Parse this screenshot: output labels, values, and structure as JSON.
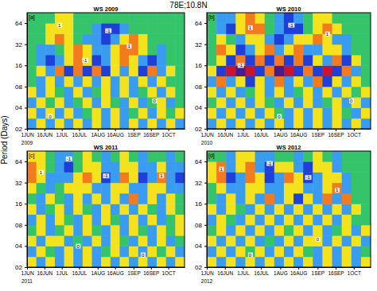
{
  "title": "78E;10.8N",
  "y_label": "Period (Days)",
  "chart_data": [
    {
      "type": "heatmap",
      "title": "WS 2009",
      "panel": "[a]",
      "x_sublabel": "2009",
      "log": "y",
      "grid": false,
      "xlim": [
        0,
        136
      ],
      "ylim": [
        2,
        90
      ],
      "zlim": [
        -3,
        3
      ],
      "xticks": [
        {
          "value": 0,
          "label": "1JUN"
        },
        {
          "value": 15,
          "label": "16JUN"
        },
        {
          "value": 30,
          "label": "1JUL"
        },
        {
          "value": 45,
          "label": "16JUL"
        },
        {
          "value": 61,
          "label": "1AUG"
        },
        {
          "value": 76,
          "label": "16AUG"
        },
        {
          "value": 92,
          "label": "1SEP"
        },
        {
          "value": 107,
          "label": "16SEP"
        },
        {
          "value": 122,
          "label": "1OCT"
        }
      ],
      "yticks": [
        {
          "value": 2,
          "label": "02"
        },
        {
          "value": 4,
          "label": "04"
        },
        {
          "value": 8,
          "label": "08"
        },
        16,
        32,
        64
      ],
      "x": [
        4,
        12,
        20,
        28,
        36,
        44,
        52,
        60,
        68,
        76,
        84,
        92,
        100,
        108,
        116,
        124,
        132
      ],
      "y": [
        2.38,
        3.36,
        4.76,
        6.73,
        9.51,
        13.45,
        19.03,
        26.9,
        38.05,
        53.8,
        76.1
      ],
      "cells": [
        [
          -1,
          1,
          -1,
          1,
          -1,
          1,
          -1,
          1,
          -1,
          1,
          -1,
          1,
          -1,
          1,
          -1,
          1,
          -1
        ],
        [
          1,
          -1,
          1,
          -1,
          1,
          -1,
          0,
          1,
          -1,
          1,
          -1,
          0,
          1,
          -1,
          1,
          0,
          1
        ],
        [
          -1,
          1,
          0,
          1,
          -1,
          0,
          1,
          -1,
          1,
          0,
          -1,
          1,
          -1,
          0,
          1,
          -1,
          0
        ],
        [
          1,
          -1,
          1,
          0,
          -1,
          1,
          -1,
          0,
          1,
          -1,
          1,
          -1,
          0,
          1,
          -1,
          1,
          0
        ],
        [
          0,
          -1,
          1,
          -1,
          1,
          -1,
          1,
          -1,
          1,
          -1,
          1,
          -1,
          1,
          -1,
          1,
          0,
          0
        ],
        [
          0,
          1,
          -1,
          2,
          -2,
          2,
          -2,
          2,
          -2,
          1,
          -1,
          1,
          -2,
          2,
          -1,
          1,
          0
        ],
        [
          0,
          -1,
          -2,
          -1,
          1,
          2,
          1,
          -2,
          -1,
          1,
          2,
          1,
          -1,
          -2,
          -1,
          0,
          0
        ],
        [
          0,
          -1,
          -1,
          0,
          1,
          2,
          1,
          -1,
          -1,
          1,
          2,
          2,
          1,
          0,
          -1,
          0,
          0
        ],
        [
          0,
          0,
          1,
          2,
          1,
          0,
          -1,
          -1,
          -2,
          -1,
          1,
          2,
          1,
          0,
          0,
          0,
          0
        ],
        [
          0,
          0,
          1,
          1,
          1,
          0,
          0,
          -1,
          -2,
          -2,
          -1,
          0,
          0,
          0,
          0,
          0,
          0
        ],
        [
          0,
          0,
          0,
          1,
          1,
          0,
          0,
          0,
          0,
          0,
          0,
          0,
          0,
          0,
          0,
          0,
          0
        ]
      ],
      "annotations": [
        {
          "x": 28,
          "y": 60,
          "text": "1"
        },
        {
          "x": 70,
          "y": 50,
          "text": "-1"
        },
        {
          "x": 88,
          "y": 30,
          "text": "1"
        },
        {
          "x": 50,
          "y": 19,
          "text": "-1"
        },
        {
          "x": 20,
          "y": 3,
          "text": "0"
        },
        {
          "x": 110,
          "y": 5,
          "text": "0"
        }
      ]
    },
    {
      "type": "heatmap",
      "title": "WS 2010",
      "panel": "[b]",
      "x_sublabel": "2010",
      "log": "y",
      "grid": false,
      "xlim": [
        0,
        136
      ],
      "ylim": [
        2,
        90
      ],
      "zlim": [
        -3,
        3
      ],
      "xticks": [
        {
          "value": 0,
          "label": "1JUN"
        },
        {
          "value": 15,
          "label": "16JUN"
        },
        {
          "value": 30,
          "label": "1JUL"
        },
        {
          "value": 45,
          "label": "16JUL"
        },
        {
          "value": 61,
          "label": "1AUG"
        },
        {
          "value": 76,
          "label": "16AUG"
        },
        {
          "value": 92,
          "label": "1SEP"
        },
        {
          "value": 107,
          "label": "16SEP"
        },
        {
          "value": 122,
          "label": "1OCT"
        }
      ],
      "yticks": [
        {
          "value": 2,
          "label": "02"
        },
        {
          "value": 4,
          "label": "04"
        },
        {
          "value": 8,
          "label": "08"
        },
        16,
        32,
        64
      ],
      "x": [
        4,
        12,
        20,
        28,
        36,
        44,
        52,
        60,
        68,
        76,
        84,
        92,
        100,
        108,
        116,
        124,
        132
      ],
      "y": [
        2.38,
        3.36,
        4.76,
        6.73,
        9.51,
        13.45,
        19.03,
        26.9,
        38.05,
        53.8,
        76.1
      ],
      "cells": [
        [
          -1,
          1,
          -1,
          1,
          -1,
          1,
          -1,
          1,
          -1,
          1,
          -1,
          1,
          -1,
          1,
          -1,
          1,
          -1
        ],
        [
          1,
          -1,
          1,
          -1,
          1,
          -1,
          1,
          0,
          -1,
          1,
          -1,
          1,
          -1,
          1,
          0,
          -1,
          1
        ],
        [
          0,
          1,
          -1,
          1,
          -1,
          1,
          0,
          -1,
          1,
          -1,
          1,
          -1,
          0,
          1,
          -1,
          1,
          -1
        ],
        [
          1,
          -1,
          1,
          -1,
          0,
          1,
          -1,
          1,
          -1,
          0,
          1,
          -1,
          1,
          -1,
          1,
          0,
          1
        ],
        [
          -1,
          2,
          -1,
          1,
          -2,
          1,
          -1,
          2,
          -1,
          1,
          -1,
          2,
          -2,
          1,
          -1,
          1,
          0
        ],
        [
          1,
          -2,
          3,
          -3,
          3,
          -2,
          2,
          -3,
          3,
          -2,
          2,
          -2,
          3,
          -2,
          2,
          -1,
          0
        ],
        [
          0,
          1,
          -2,
          2,
          -2,
          2,
          -2,
          2,
          -2,
          2,
          -2,
          1,
          -1,
          2,
          -2,
          1,
          0
        ],
        [
          0,
          2,
          1,
          -2,
          -1,
          1,
          2,
          -1,
          1,
          2,
          -1,
          -1,
          1,
          1,
          -1,
          0,
          0
        ],
        [
          0,
          1,
          0,
          -1,
          1,
          1,
          -1,
          -2,
          -1,
          1,
          1,
          2,
          1,
          -1,
          -1,
          0,
          0
        ],
        [
          0,
          -1,
          -2,
          1,
          2,
          2,
          0,
          -1,
          -2,
          -2,
          0,
          1,
          2,
          1,
          0,
          0,
          0
        ],
        [
          0,
          -1,
          -1,
          1,
          2,
          1,
          0,
          -1,
          -2,
          -1,
          0,
          1,
          1,
          0,
          0,
          0,
          0
        ]
      ],
      "annotations": [
        {
          "x": 36,
          "y": 55,
          "text": "1"
        },
        {
          "x": 70,
          "y": 60,
          "text": "-1"
        },
        {
          "x": 100,
          "y": 45,
          "text": "1"
        },
        {
          "x": 28,
          "y": 16,
          "text": "-1"
        },
        {
          "x": 60,
          "y": 3,
          "text": "0"
        },
        {
          "x": 120,
          "y": 5,
          "text": "0"
        }
      ]
    },
    {
      "type": "heatmap",
      "title": "WS 2011",
      "panel": "[c]",
      "x_sublabel": "2011",
      "log": "y",
      "grid": false,
      "xlim": [
        0,
        136
      ],
      "ylim": [
        2,
        90
      ],
      "zlim": [
        -3,
        3
      ],
      "xticks": [
        {
          "value": 0,
          "label": "1JUN"
        },
        {
          "value": 15,
          "label": "16JUN"
        },
        {
          "value": 30,
          "label": "1JUL"
        },
        {
          "value": 45,
          "label": "16JUL"
        },
        {
          "value": 61,
          "label": "1AUG"
        },
        {
          "value": 76,
          "label": "16AUG"
        },
        {
          "value": 92,
          "label": "1SEP"
        },
        {
          "value": 107,
          "label": "16SEP"
        },
        {
          "value": 122,
          "label": "1OCT"
        }
      ],
      "yticks": [
        {
          "value": 2,
          "label": "02"
        },
        {
          "value": 4,
          "label": "04"
        },
        {
          "value": 8,
          "label": "08"
        },
        16,
        32,
        64
      ],
      "x": [
        4,
        12,
        20,
        28,
        36,
        44,
        52,
        60,
        68,
        76,
        84,
        92,
        100,
        108,
        116,
        124,
        132
      ],
      "y": [
        2.38,
        3.36,
        4.76,
        6.73,
        9.51,
        13.45,
        19.03,
        26.9,
        38.05,
        53.8,
        76.1
      ],
      "cells": [
        [
          1,
          -1,
          1,
          -1,
          1,
          -1,
          1,
          -1,
          1,
          -1,
          1,
          -1,
          1,
          -1,
          1,
          -1,
          1
        ],
        [
          -1,
          1,
          0,
          -1,
          1,
          -1,
          1,
          -1,
          0,
          1,
          -1,
          1,
          -1,
          1,
          0,
          1,
          -1
        ],
        [
          1,
          -1,
          1,
          1,
          -1,
          0,
          -1,
          1,
          -1,
          1,
          0,
          -1,
          1,
          -1,
          1,
          -1,
          0
        ],
        [
          0,
          1,
          -1,
          0,
          1,
          -1,
          1,
          0,
          -1,
          1,
          -1,
          1,
          0,
          -1,
          1,
          0,
          1
        ],
        [
          -1,
          1,
          -1,
          1,
          0,
          -1,
          1,
          -1,
          1,
          0,
          -1,
          1,
          -1,
          1,
          -1,
          0,
          1
        ],
        [
          1,
          -1,
          0,
          1,
          -1,
          1,
          0,
          -1,
          1,
          -1,
          1,
          -1,
          1,
          0,
          -1,
          1,
          0
        ],
        [
          0,
          -1,
          1,
          0,
          -1,
          1,
          -1,
          1,
          -1,
          1,
          -1,
          2,
          -1,
          1,
          -1,
          1,
          0
        ],
        [
          1,
          0,
          -1,
          0,
          1,
          1,
          1,
          -1,
          -1,
          1,
          1,
          -1,
          -1,
          1,
          1,
          -1,
          -1
        ],
        [
          2,
          1,
          -1,
          -1,
          -1,
          1,
          2,
          1,
          -2,
          -1,
          2,
          1,
          -2,
          -1,
          2,
          -1,
          -2
        ],
        [
          2,
          1,
          0,
          -1,
          -2,
          0,
          1,
          1,
          -1,
          -1,
          1,
          1,
          -1,
          -1,
          1,
          -1,
          -1
        ],
        [
          1,
          1,
          0,
          -1,
          -1,
          0,
          1,
          0,
          -1,
          0,
          1,
          0,
          -1,
          0,
          0,
          -1,
          0
        ]
      ],
      "annotations": [
        {
          "x": 12,
          "y": 45,
          "text": "1"
        },
        {
          "x": 36,
          "y": 70,
          "text": "-1"
        },
        {
          "x": 68,
          "y": 40,
          "text": "-1"
        },
        {
          "x": 116,
          "y": 40,
          "text": "1"
        },
        {
          "x": 44,
          "y": 4,
          "text": "0"
        },
        {
          "x": 100,
          "y": 3,
          "text": "0"
        }
      ]
    },
    {
      "type": "heatmap",
      "title": "WS 2012",
      "panel": "[d]",
      "x_sublabel": "2012",
      "log": "y",
      "grid": false,
      "xlim": [
        0,
        136
      ],
      "ylim": [
        2,
        90
      ],
      "zlim": [
        -3,
        3
      ],
      "xticks": [
        {
          "value": 0,
          "label": "1JUN"
        },
        {
          "value": 15,
          "label": "16JUN"
        },
        {
          "value": 30,
          "label": "1JUL"
        },
        {
          "value": 45,
          "label": "16JUL"
        },
        {
          "value": 61,
          "label": "1AUG"
        },
        {
          "value": 76,
          "label": "16AUG"
        },
        {
          "value": 92,
          "label": "1SEP"
        },
        {
          "value": 107,
          "label": "16SEP"
        },
        {
          "value": 122,
          "label": "1OCT"
        }
      ],
      "yticks": [
        {
          "value": 2,
          "label": "02"
        },
        {
          "value": 4,
          "label": "04"
        },
        {
          "value": 8,
          "label": "08"
        },
        16,
        32,
        64
      ],
      "x": [
        4,
        12,
        20,
        28,
        36,
        44,
        52,
        60,
        68,
        76,
        84,
        92,
        100,
        108,
        116,
        124,
        132
      ],
      "y": [
        2.38,
        3.36,
        4.76,
        6.73,
        9.51,
        13.45,
        19.03,
        26.9,
        38.05,
        53.8,
        76.1
      ],
      "cells": [
        [
          1,
          -1,
          1,
          -1,
          1,
          -1,
          1,
          -1,
          1,
          -1,
          1,
          -1,
          1,
          -1,
          1,
          -1,
          1
        ],
        [
          -1,
          1,
          -1,
          1,
          0,
          1,
          -1,
          1,
          -1,
          1,
          0,
          -1,
          1,
          -1,
          1,
          -1,
          0
        ],
        [
          1,
          -1,
          1,
          -1,
          1,
          -1,
          0,
          -1,
          1,
          -1,
          1,
          1,
          -1,
          1,
          -1,
          1,
          -1
        ],
        [
          0,
          1,
          -1,
          1,
          -1,
          1,
          -1,
          1,
          0,
          1,
          -1,
          1,
          -1,
          0,
          1,
          -1,
          1
        ],
        [
          -1,
          1,
          0,
          -1,
          1,
          -1,
          1,
          -1,
          1,
          -1,
          1,
          -1,
          1,
          -1,
          1,
          0,
          0
        ],
        [
          1,
          -1,
          1,
          0,
          -1,
          1,
          -1,
          1,
          -1,
          1,
          -1,
          1,
          -1,
          1,
          -1,
          1,
          0
        ],
        [
          0,
          -1,
          1,
          -1,
          1,
          -1,
          2,
          -1,
          1,
          -2,
          1,
          -1,
          2,
          -1,
          2,
          0,
          0
        ],
        [
          0,
          1,
          -1,
          -1,
          1,
          1,
          -1,
          -1,
          1,
          1,
          -1,
          -1,
          1,
          2,
          -1,
          0,
          0
        ],
        [
          1,
          2,
          -2,
          -1,
          2,
          1,
          -2,
          -1,
          2,
          1,
          -2,
          -1,
          1,
          1,
          -1,
          0,
          0
        ],
        [
          1,
          2,
          -1,
          1,
          2,
          -1,
          -2,
          1,
          1,
          -1,
          -2,
          1,
          1,
          -1,
          0,
          0,
          0
        ],
        [
          0,
          0,
          -1,
          1,
          1,
          -1,
          -1,
          0,
          0,
          -1,
          0,
          1,
          0,
          -1,
          0,
          0,
          0
        ]
      ],
      "annotations": [
        {
          "x": 12,
          "y": 50,
          "text": "1"
        },
        {
          "x": 52,
          "y": 60,
          "text": "-1"
        },
        {
          "x": 84,
          "y": 38,
          "text": "-1"
        },
        {
          "x": 108,
          "y": 25,
          "text": "1"
        },
        {
          "x": 36,
          "y": 3,
          "text": "0"
        },
        {
          "x": 92,
          "y": 5,
          "text": "0"
        }
      ]
    }
  ]
}
